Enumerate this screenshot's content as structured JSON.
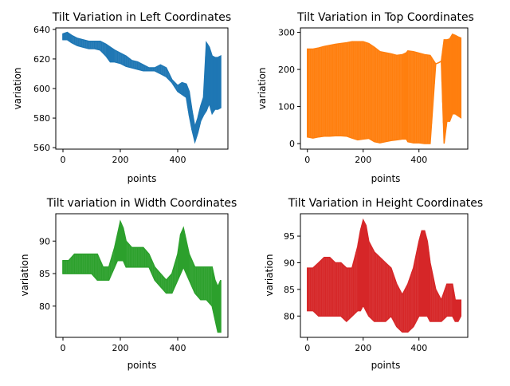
{
  "chart_data": [
    {
      "type": "line",
      "title": "Tilt Variation in Left Coordinates",
      "xlabel": "points",
      "ylabel": "variation",
      "xlim": [
        -25,
        575
      ],
      "ylim": [
        559,
        641
      ],
      "xticks": [
        0,
        200,
        400
      ],
      "yticks": [
        560,
        580,
        600,
        620,
        640
      ],
      "color": "#1f77b4",
      "series": [
        {
          "x": [
            0,
            15,
            30,
            50,
            70,
            90,
            110,
            130,
            150,
            165,
            180,
            200,
            220,
            240,
            260,
            280,
            300,
            320,
            340,
            360,
            380,
            400,
            415,
            430,
            440,
            450,
            460,
            470,
            480,
            490,
            500,
            510,
            520,
            530,
            540,
            550
          ],
          "low": [
            633,
            633,
            631,
            629,
            628,
            627,
            627,
            626,
            622,
            618,
            618,
            617,
            615,
            614,
            613,
            612,
            612,
            612,
            610,
            608,
            604,
            598,
            596,
            594,
            582,
            572,
            564,
            570,
            578,
            582,
            585,
            590,
            583,
            586,
            586,
            587
          ],
          "high": [
            637,
            638,
            636,
            634,
            633,
            632,
            632,
            632,
            630,
            628,
            626,
            624,
            622,
            619,
            618,
            616,
            614,
            614,
            616,
            614,
            606,
            602,
            604,
            603,
            598,
            585,
            574,
            580,
            588,
            594,
            631,
            628,
            622,
            621,
            621,
            622
          ]
        }
      ]
    },
    {
      "type": "line",
      "title": "Tilt Variation in Top Coordinates",
      "xlabel": "points",
      "ylabel": "variation",
      "xlim": [
        -25,
        575
      ],
      "ylim": [
        -15,
        312
      ],
      "xticks": [
        0,
        200,
        400
      ],
      "yticks": [
        0,
        100,
        200,
        300
      ],
      "color": "#ff7f0e",
      "series": [
        {
          "x": [
            0,
            20,
            40,
            60,
            80,
            100,
            120,
            140,
            160,
            180,
            200,
            220,
            240,
            260,
            280,
            300,
            320,
            340,
            355,
            360,
            380,
            400,
            420,
            440,
            460,
            470,
            480,
            490,
            500,
            510,
            520,
            530,
            540,
            550
          ],
          "low": [
            18,
            15,
            18,
            20,
            20,
            21,
            21,
            20,
            15,
            10,
            12,
            14,
            5,
            2,
            5,
            8,
            10,
            12,
            12,
            5,
            2,
            2,
            0,
            0,
            215,
            218,
            222,
            0,
            60,
            60,
            80,
            80,
            75,
            70
          ],
          "high": [
            255,
            255,
            258,
            262,
            265,
            268,
            270,
            272,
            275,
            275,
            275,
            270,
            260,
            248,
            245,
            242,
            238,
            240,
            245,
            250,
            248,
            244,
            240,
            238,
            215,
            218,
            222,
            280,
            280,
            282,
            295,
            292,
            288,
            285
          ]
        }
      ]
    },
    {
      "type": "line",
      "title": "Tilt variation in Width Coordinates",
      "xlabel": "points",
      "ylabel": "variation",
      "xlim": [
        -25,
        575
      ],
      "ylim": [
        75.2,
        94.2
      ],
      "xticks": [
        0,
        200,
        400
      ],
      "yticks": [
        80,
        85,
        90
      ],
      "color": "#2ca02c",
      "series": [
        {
          "x": [
            0,
            20,
            40,
            60,
            80,
            100,
            120,
            140,
            160,
            180,
            190,
            200,
            210,
            220,
            240,
            260,
            280,
            300,
            320,
            340,
            360,
            380,
            400,
            410,
            420,
            430,
            440,
            460,
            480,
            500,
            520,
            530,
            540,
            550
          ],
          "low": [
            85,
            85,
            85,
            85,
            85,
            85,
            84,
            84,
            84,
            86,
            87,
            87,
            87,
            86,
            86,
            86,
            86,
            86,
            84,
            83,
            82,
            82,
            84,
            85,
            86,
            85,
            84,
            82,
            81,
            81,
            80,
            78,
            76,
            76
          ],
          "high": [
            87,
            87,
            88,
            88,
            88,
            88,
            88,
            86,
            86,
            89,
            91,
            93,
            92,
            90,
            89,
            89,
            89,
            88,
            86,
            85,
            84,
            85,
            88,
            91,
            92,
            90,
            88,
            86,
            86,
            86,
            86,
            84,
            83,
            84
          ]
        }
      ]
    },
    {
      "type": "line",
      "title": "Tilt Variation in Height Coordinates",
      "xlabel": "points",
      "ylabel": "variation",
      "xlim": [
        -25,
        575
      ],
      "ylim": [
        76,
        99.2
      ],
      "xticks": [
        0,
        200,
        400
      ],
      "yticks": [
        80,
        85,
        90,
        95
      ],
      "color": "#d62728",
      "series": [
        {
          "x": [
            0,
            20,
            40,
            60,
            80,
            100,
            120,
            140,
            160,
            180,
            190,
            200,
            210,
            220,
            240,
            260,
            280,
            300,
            320,
            340,
            360,
            380,
            400,
            410,
            420,
            430,
            440,
            460,
            480,
            500,
            520,
            530,
            540,
            550
          ],
          "low": [
            81,
            81,
            80,
            80,
            80,
            80,
            80,
            79,
            80,
            81,
            81,
            82,
            81,
            80,
            79,
            79,
            79,
            80,
            78,
            77,
            77,
            78,
            80,
            80,
            80,
            80,
            79,
            79,
            79,
            80,
            80,
            79,
            79,
            80
          ],
          "high": [
            89,
            89,
            90,
            91,
            91,
            90,
            90,
            89,
            89,
            93,
            96,
            98,
            97,
            94,
            92,
            91,
            90,
            89,
            86,
            84,
            86,
            89,
            94,
            96,
            96,
            94,
            90,
            85,
            83,
            86,
            86,
            83,
            83,
            83
          ]
        }
      ]
    }
  ]
}
